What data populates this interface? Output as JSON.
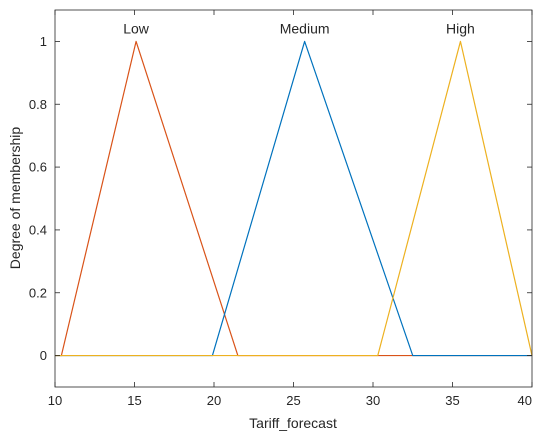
{
  "chart_data": {
    "type": "line",
    "xlabel": "Tariff_forecast",
    "ylabel": "Degree of membership",
    "xlim": [
      10,
      40
    ],
    "ylim": [
      -0.1,
      1.1
    ],
    "xticks": [
      10,
      15,
      20,
      25,
      30,
      35,
      40
    ],
    "yticks": [
      0,
      0.2,
      0.4,
      0.6,
      0.8,
      1
    ],
    "xtick_labels": [
      "10",
      "15",
      "20",
      "25",
      "30",
      "35",
      "40"
    ],
    "ytick_labels": [
      "0",
      "0.2",
      "0.4",
      "0.6",
      "0.8",
      "1"
    ],
    "grid": false,
    "series": [
      {
        "name": "Low",
        "color": "#D95319",
        "x": [
          10,
          10.4,
          15.1,
          21.5,
          40
        ],
        "y": [
          0,
          0,
          1,
          0,
          0
        ]
      },
      {
        "name": "Medium",
        "color": "#0072BD",
        "x": [
          10,
          19.9,
          25.7,
          32.5,
          40
        ],
        "y": [
          0,
          0,
          1,
          0,
          0
        ]
      },
      {
        "name": "High",
        "color": "#EDB120",
        "x": [
          10,
          30.3,
          35.5,
          40
        ],
        "y": [
          0,
          0,
          1,
          0
        ]
      }
    ]
  }
}
